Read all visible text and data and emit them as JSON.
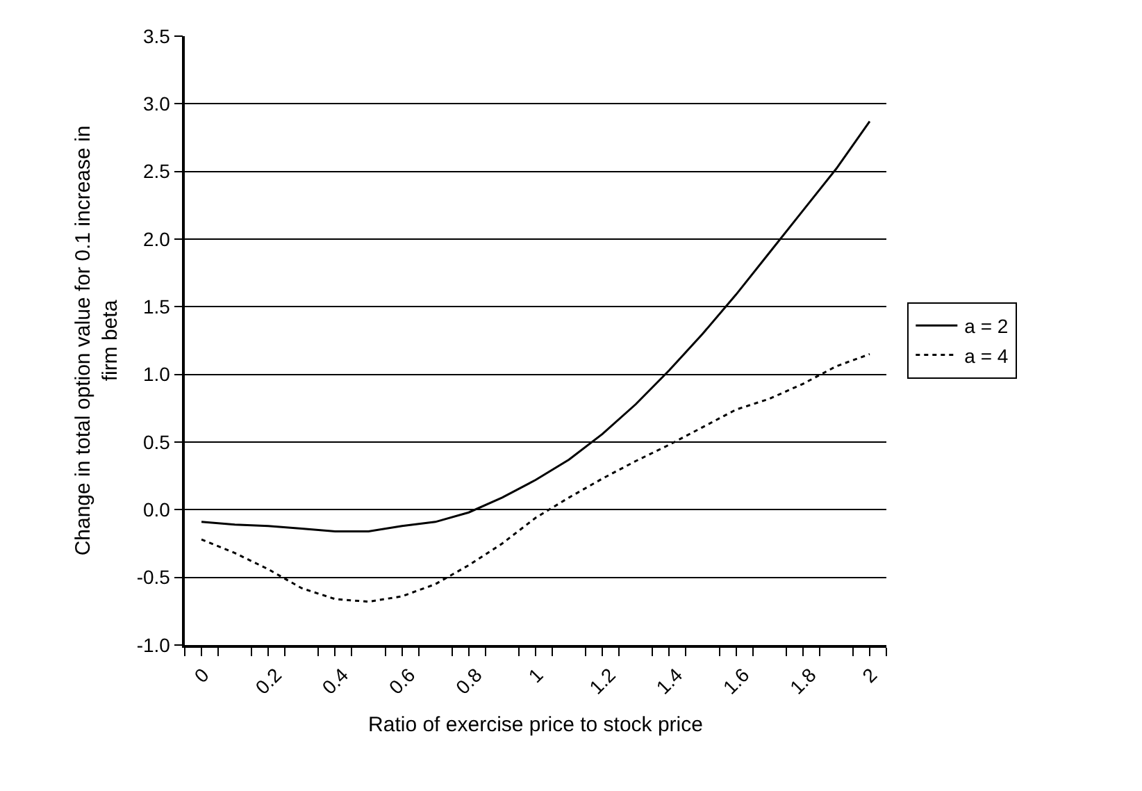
{
  "chart_data": {
    "type": "line",
    "xlabel": "Ratio of exercise price to stock price",
    "ylabel": "Change in total option value for 0.1 increase in firm beta",
    "x": [
      0,
      0.1,
      0.2,
      0.3,
      0.4,
      0.5,
      0.6,
      0.7,
      0.8,
      0.9,
      1,
      1.1,
      1.2,
      1.3,
      1.4,
      1.5,
      1.6,
      1.7,
      1.8,
      1.9,
      2
    ],
    "series": [
      {
        "name": "a = 2",
        "color": "#000000",
        "line_style": "solid",
        "values": [
          -0.09,
          -0.11,
          -0.12,
          -0.14,
          -0.16,
          -0.16,
          -0.12,
          -0.09,
          -0.02,
          0.09,
          0.22,
          0.37,
          0.56,
          0.78,
          1.03,
          1.3,
          1.59,
          1.9,
          2.21,
          2.52,
          2.87
        ]
      },
      {
        "name": "a = 4",
        "color": "#000000",
        "line_style": "dotted",
        "values": [
          -0.22,
          -0.32,
          -0.44,
          -0.58,
          -0.66,
          -0.68,
          -0.64,
          -0.55,
          -0.41,
          -0.25,
          -0.06,
          0.09,
          0.23,
          0.36,
          0.48,
          0.61,
          0.74,
          0.82,
          0.93,
          1.06,
          1.15
        ]
      }
    ],
    "xlim": [
      -0.05,
      2.05
    ],
    "xticks": [
      {
        "value": -0.05,
        "label": null
      },
      0,
      {
        "value": 0.05,
        "label": null
      },
      {
        "value": 0.15,
        "label": null
      },
      0.2,
      {
        "value": 0.25,
        "label": null
      },
      {
        "value": 0.35,
        "label": null
      },
      0.4,
      {
        "value": 0.45,
        "label": null
      },
      {
        "value": 0.55,
        "label": null
      },
      0.6,
      {
        "value": 0.65,
        "label": null
      },
      {
        "value": 0.75,
        "label": null
      },
      0.8,
      {
        "value": 0.85,
        "label": null
      },
      {
        "value": 0.95,
        "label": null
      },
      1,
      {
        "value": 1.05,
        "label": null
      },
      {
        "value": 1.15,
        "label": null
      },
      1.2,
      {
        "value": 1.25,
        "label": null
      },
      {
        "value": 1.35,
        "label": null
      },
      1.4,
      {
        "value": 1.45,
        "label": null
      },
      {
        "value": 1.55,
        "label": null
      },
      1.6,
      {
        "value": 1.65,
        "label": null
      },
      {
        "value": 1.75,
        "label": null
      },
      1.8,
      {
        "value": 1.85,
        "label": null
      },
      {
        "value": 1.95,
        "label": null
      },
      2,
      {
        "value": 2.05,
        "label": null
      }
    ],
    "ylim": [
      -1,
      3.5
    ],
    "yticks": [
      {
        "value": -1,
        "label": "-1.0"
      },
      {
        "value": -0.5,
        "label": "-0.5"
      },
      {
        "value": 0,
        "label": "0.0"
      },
      {
        "value": 0.5,
        "label": "0.5"
      },
      {
        "value": 1,
        "label": "1.0"
      },
      {
        "value": 1.5,
        "label": "1.5"
      },
      {
        "value": 2,
        "label": "2.0"
      },
      {
        "value": 2.5,
        "label": "2.5"
      },
      {
        "value": 3,
        "label": "3.0"
      },
      {
        "value": 3.5,
        "label": "3.5"
      }
    ],
    "grid": "y",
    "legend": "right",
    "marker": "none"
  }
}
